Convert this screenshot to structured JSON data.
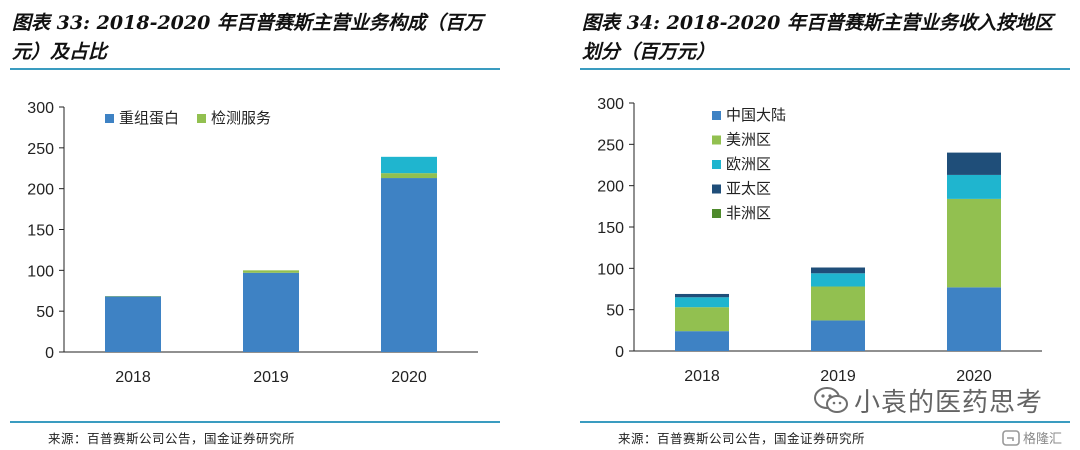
{
  "left": {
    "title": "图表 33:   2018-2020 年百普赛斯主营业务构成（百万元）及占比",
    "source": "来源：百普赛斯公司公告，国金证券研究所"
  },
  "right": {
    "title": "图表 34:   2018-2020 年百普赛斯主营业务收入按地区划分（百万元）",
    "source": "来源：百普赛斯公司公告，国金证券研究所"
  },
  "watermark": {
    "text": "小袁的医药思考",
    "icon": "wechat-icon"
  },
  "corner_logo": {
    "text": "格隆汇",
    "icon": "gelonghui-logo-icon"
  },
  "chart_data": [
    {
      "type": "bar",
      "stacked": true,
      "categories": [
        "2018",
        "2019",
        "2020"
      ],
      "series": [
        {
          "name": "重组蛋白",
          "color": "#3e82c4",
          "values": [
            68,
            97,
            213
          ]
        },
        {
          "name": "检测服务",
          "color": "#92c050",
          "values": [
            0.5,
            3,
            6
          ]
        },
        {
          "name": "",
          "color": "#1fb5cf",
          "values": [
            0,
            0,
            20
          ]
        }
      ],
      "ylim": [
        0,
        300
      ],
      "yticks": [
        0,
        50,
        100,
        150,
        200,
        250,
        300
      ],
      "grid": false,
      "legend": "top-left-horizontal"
    },
    {
      "type": "bar",
      "stacked": true,
      "categories": [
        "2018",
        "2019",
        "2020"
      ],
      "series": [
        {
          "name": "中国大陆",
          "color": "#3e82c4",
          "values": [
            24,
            37,
            77
          ]
        },
        {
          "name": "美洲区",
          "color": "#92c050",
          "values": [
            29,
            41,
            107
          ]
        },
        {
          "name": "欧洲区",
          "color": "#1fb5cf",
          "values": [
            12,
            16,
            29
          ]
        },
        {
          "name": "亚太区",
          "color": "#1f4e79",
          "values": [
            4,
            7,
            27
          ]
        },
        {
          "name": "非洲区",
          "color": "#4e8a2c",
          "values": [
            0,
            0,
            0
          ]
        }
      ],
      "ylim": [
        0,
        300
      ],
      "yticks": [
        0,
        50,
        100,
        150,
        200,
        250,
        300
      ],
      "grid": false,
      "legend": "top-left-vertical"
    }
  ]
}
